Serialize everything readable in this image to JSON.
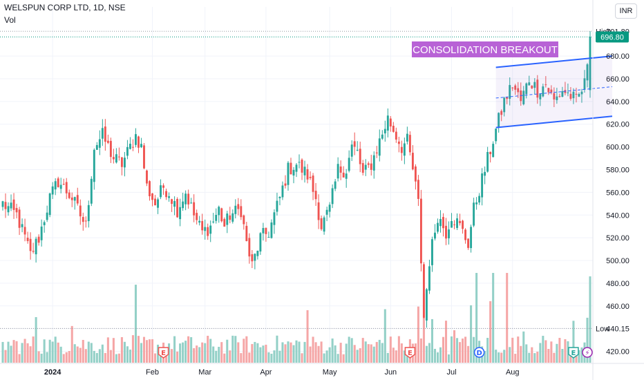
{
  "header": {
    "title": "WELSPUN CORP LTD, 1D, NSE",
    "volume_label": "Vol",
    "currency": "INR"
  },
  "chart_data": {
    "type": "candlestick",
    "ylim": [
      410,
      705
    ],
    "y_ticks": [
      420,
      440,
      460,
      480,
      500,
      520,
      540,
      560,
      580,
      600,
      620,
      640,
      660,
      680
    ],
    "x_labels": [
      "2024",
      "Feb",
      "Mar",
      "Apr",
      "May",
      "Jun",
      "Jul",
      "Aug"
    ],
    "colors": {
      "up": "#26a69a",
      "down": "#ef5350",
      "vol_up": "#93d0c7",
      "vol_down": "#f5a6a6",
      "channel": "#2962ff",
      "annotation_bg": "#b862d6",
      "last_price": "#089981"
    },
    "high": {
      "label": "High",
      "value": "701.80"
    },
    "low": {
      "label": "Low",
      "value": "440.15"
    },
    "last_price": "696.80",
    "annotation": "CONSOLIDATION BREAKOUT",
    "event_markers": [
      {
        "label": "E",
        "position": "Feb",
        "color": "#ef5350"
      },
      {
        "label": "E",
        "position": "Jun",
        "color": "#ef5350"
      },
      {
        "label": "D",
        "position": "Jul",
        "color": "#2962ff"
      },
      {
        "label": "E",
        "position": "Aug",
        "color": "#26a69a"
      },
      {
        "label": "⚡",
        "position": "Aug",
        "color": "#9c27b0"
      }
    ],
    "channel": {
      "upper": [
        670,
        680
      ],
      "lower": [
        617,
        627
      ],
      "mid": [
        643,
        653
      ]
    },
    "anchors": [
      [
        0,
        550
      ],
      [
        5,
        540
      ],
      [
        8,
        520
      ],
      [
        10,
        505
      ],
      [
        13,
        520
      ],
      [
        17,
        555
      ],
      [
        20,
        570
      ],
      [
        25,
        555
      ],
      [
        28,
        540
      ],
      [
        30,
        530
      ],
      [
        33,
        600
      ],
      [
        36,
        610
      ],
      [
        40,
        590
      ],
      [
        43,
        585
      ],
      [
        46,
        600
      ],
      [
        48,
        610
      ],
      [
        50,
        600
      ],
      [
        52,
        565
      ],
      [
        55,
        550
      ],
      [
        58,
        565
      ],
      [
        60,
        560
      ],
      [
        63,
        545
      ],
      [
        66,
        560
      ],
      [
        69,
        540
      ],
      [
        72,
        525
      ],
      [
        75,
        530
      ],
      [
        78,
        545
      ],
      [
        80,
        530
      ],
      [
        82,
        540
      ],
      [
        86,
        545
      ],
      [
        88,
        515
      ],
      [
        90,
        495
      ],
      [
        93,
        520
      ],
      [
        96,
        525
      ],
      [
        100,
        555
      ],
      [
        103,
        580
      ],
      [
        106,
        585
      ],
      [
        110,
        575
      ],
      [
        113,
        555
      ],
      [
        115,
        530
      ],
      [
        118,
        545
      ],
      [
        121,
        580
      ],
      [
        124,
        580
      ],
      [
        126,
        600
      ],
      [
        128,
        595
      ],
      [
        130,
        575
      ],
      [
        133,
        585
      ],
      [
        136,
        605
      ],
      [
        139,
        625
      ],
      [
        141,
        615
      ],
      [
        144,
        600
      ],
      [
        146,
        605
      ],
      [
        148,
        580
      ],
      [
        150,
        550
      ],
      [
        152,
        450
      ],
      [
        154,
        500
      ],
      [
        157,
        540
      ],
      [
        160,
        525
      ],
      [
        162,
        540
      ],
      [
        165,
        530
      ],
      [
        168,
        515
      ],
      [
        170,
        545
      ],
      [
        174,
        580
      ],
      [
        178,
        615
      ],
      [
        181,
        640
      ],
      [
        184,
        655
      ],
      [
        187,
        640
      ],
      [
        190,
        660
      ],
      [
        193,
        650
      ],
      [
        196,
        655
      ],
      [
        199,
        640
      ],
      [
        202,
        650
      ],
      [
        205,
        645
      ],
      [
        207,
        640
      ],
      [
        210,
        655
      ],
      [
        212,
        696.8
      ]
    ]
  }
}
